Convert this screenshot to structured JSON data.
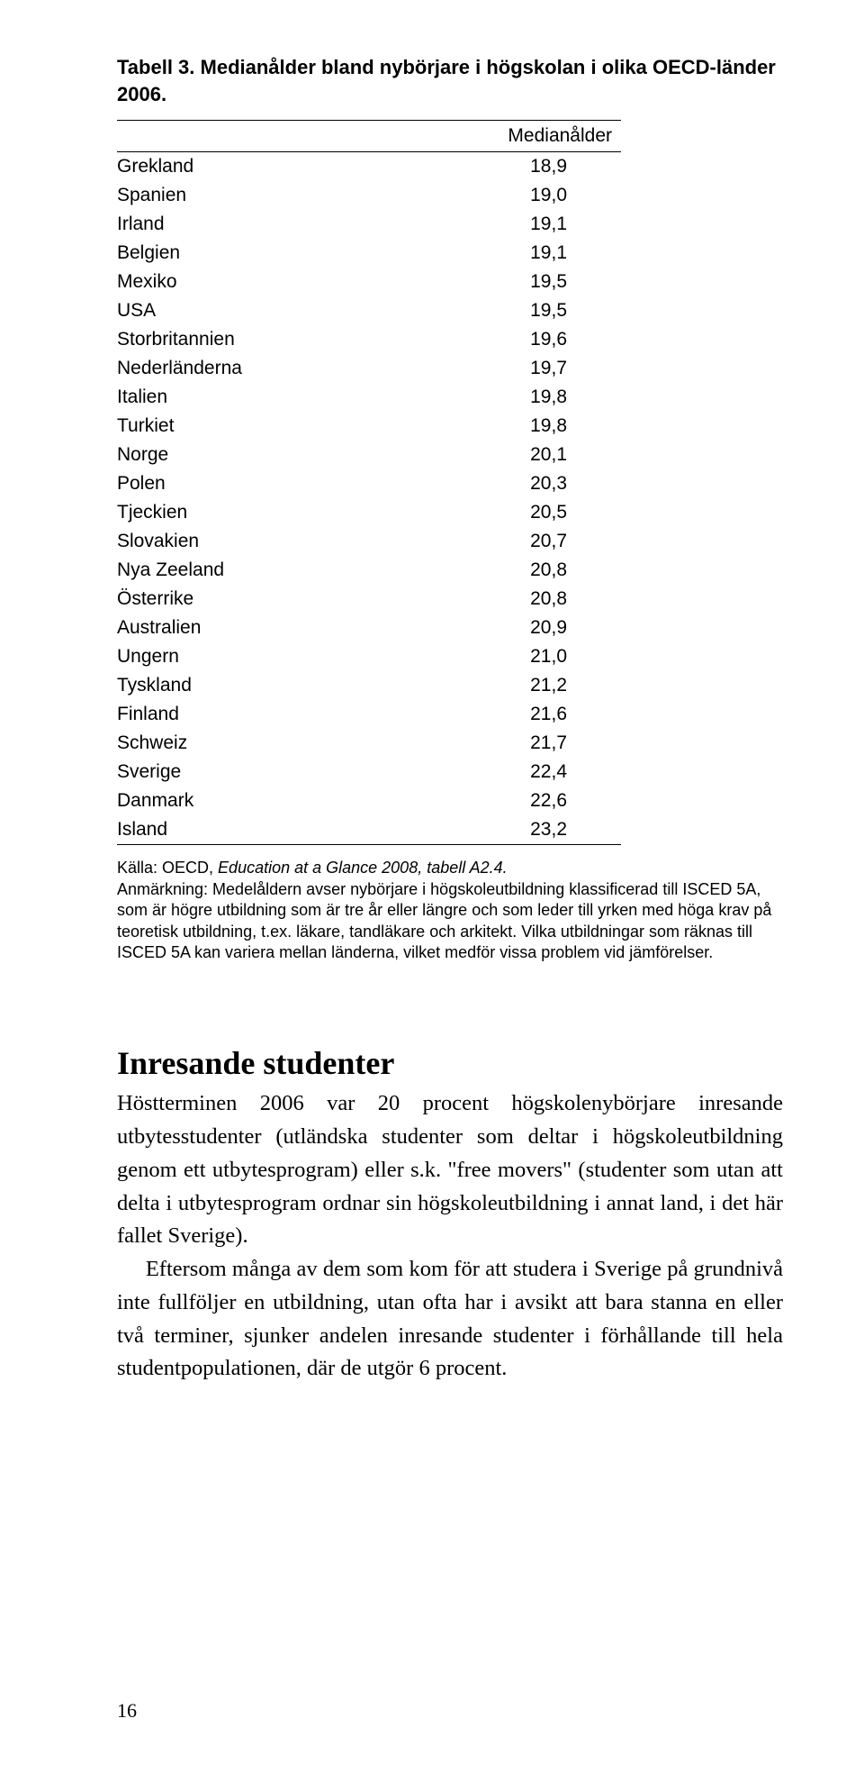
{
  "table": {
    "title": "Tabell 3. Medianålder bland nybörjare i högskolan i olika OECD-länder 2006.",
    "header_value_label": "Medianålder",
    "rows": [
      {
        "country": "Grekland",
        "value": "18,9"
      },
      {
        "country": "Spanien",
        "value": "19,0"
      },
      {
        "country": "Irland",
        "value": "19,1"
      },
      {
        "country": "Belgien",
        "value": "19,1"
      },
      {
        "country": "Mexiko",
        "value": "19,5"
      },
      {
        "country": "USA",
        "value": "19,5"
      },
      {
        "country": "Storbritannien",
        "value": "19,6"
      },
      {
        "country": "Nederländerna",
        "value": "19,7"
      },
      {
        "country": "Italien",
        "value": "19,8"
      },
      {
        "country": "Turkiet",
        "value": "19,8"
      },
      {
        "country": "Norge",
        "value": "20,1"
      },
      {
        "country": "Polen",
        "value": "20,3"
      },
      {
        "country": "Tjeckien",
        "value": "20,5"
      },
      {
        "country": "Slovakien",
        "value": "20,7"
      },
      {
        "country": "Nya Zeeland",
        "value": "20,8"
      },
      {
        "country": "Österrike",
        "value": "20,8"
      },
      {
        "country": "Australien",
        "value": "20,9"
      },
      {
        "country": "Ungern",
        "value": "21,0"
      },
      {
        "country": "Tyskland",
        "value": "21,2"
      },
      {
        "country": "Finland",
        "value": "21,6"
      },
      {
        "country": "Schweiz",
        "value": "21,7"
      },
      {
        "country": "Sverige",
        "value": "22,4"
      },
      {
        "country": "Danmark",
        "value": "22,6"
      },
      {
        "country": "Island",
        "value": "23,2"
      }
    ],
    "source_label": "Källa: OECD, ",
    "source_italic": "Education at a Glance 2008, tabell A2.4.",
    "note": "Anmärkning: Medelåldern avser nybörjare i högskoleutbildning klassificerad till ISCED 5A, som är högre utbildning som är tre år eller längre och som leder till yrken med höga krav på teoretisk utbildning, t.ex. läkare, tandläkare och arkitekt. Vilka utbildningar som räknas till ISCED 5A kan variera mellan länderna, vilket medför vissa problem vid jämförelser."
  },
  "section": {
    "heading": "Inresande studenter",
    "para1": "Höstterminen 2006 var 20 procent högskolenybörjare inresande utbytesstudenter (utländska studenter som deltar i högskoleutbildning genom ett utbytesprogram) eller s.k. \"free movers\" (studenter som utan att delta i utbytesprogram ordnar sin högskoleutbildning i annat land, i det här fallet Sverige).",
    "para2": "Eftersom många av dem som kom för att studera i Sverige på grundnivå inte fullföljer en utbildning, utan ofta har i avsikt att bara stanna en eller två terminer, sjunker andelen inresande studenter i förhållande till hela studentpopulationen, där de utgör 6 procent."
  },
  "page_number": "16"
}
